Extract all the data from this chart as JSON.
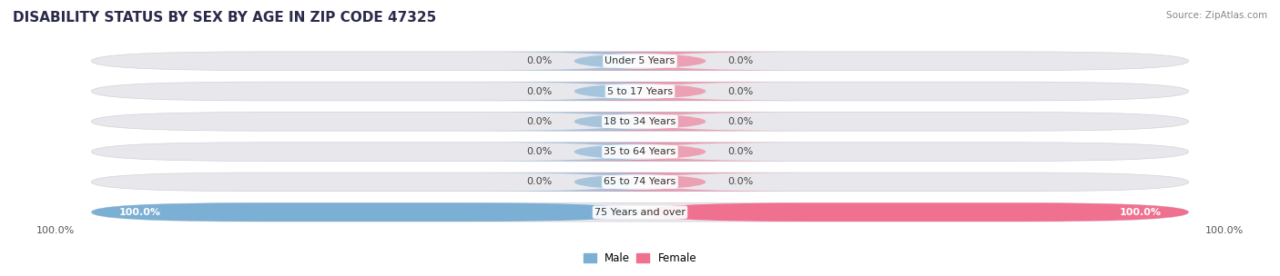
{
  "title": "DISABILITY STATUS BY SEX BY AGE IN ZIP CODE 47325",
  "source": "Source: ZipAtlas.com",
  "categories": [
    "Under 5 Years",
    "5 to 17 Years",
    "18 to 34 Years",
    "35 to 64 Years",
    "65 to 74 Years",
    "75 Years and over"
  ],
  "male_values": [
    0.0,
    0.0,
    0.0,
    0.0,
    0.0,
    100.0
  ],
  "female_values": [
    0.0,
    0.0,
    0.0,
    0.0,
    0.0,
    100.0
  ],
  "male_color": "#7bafd4",
  "female_color": "#f07090",
  "bar_bg_color": "#e8e8ec",
  "bar_bg_border": "#d0d0d8",
  "figsize": [
    14.06,
    3.04
  ],
  "dpi": 100,
  "title_fontsize": 11,
  "label_fontsize": 8,
  "tick_fontsize": 8,
  "legend_fontsize": 8.5
}
